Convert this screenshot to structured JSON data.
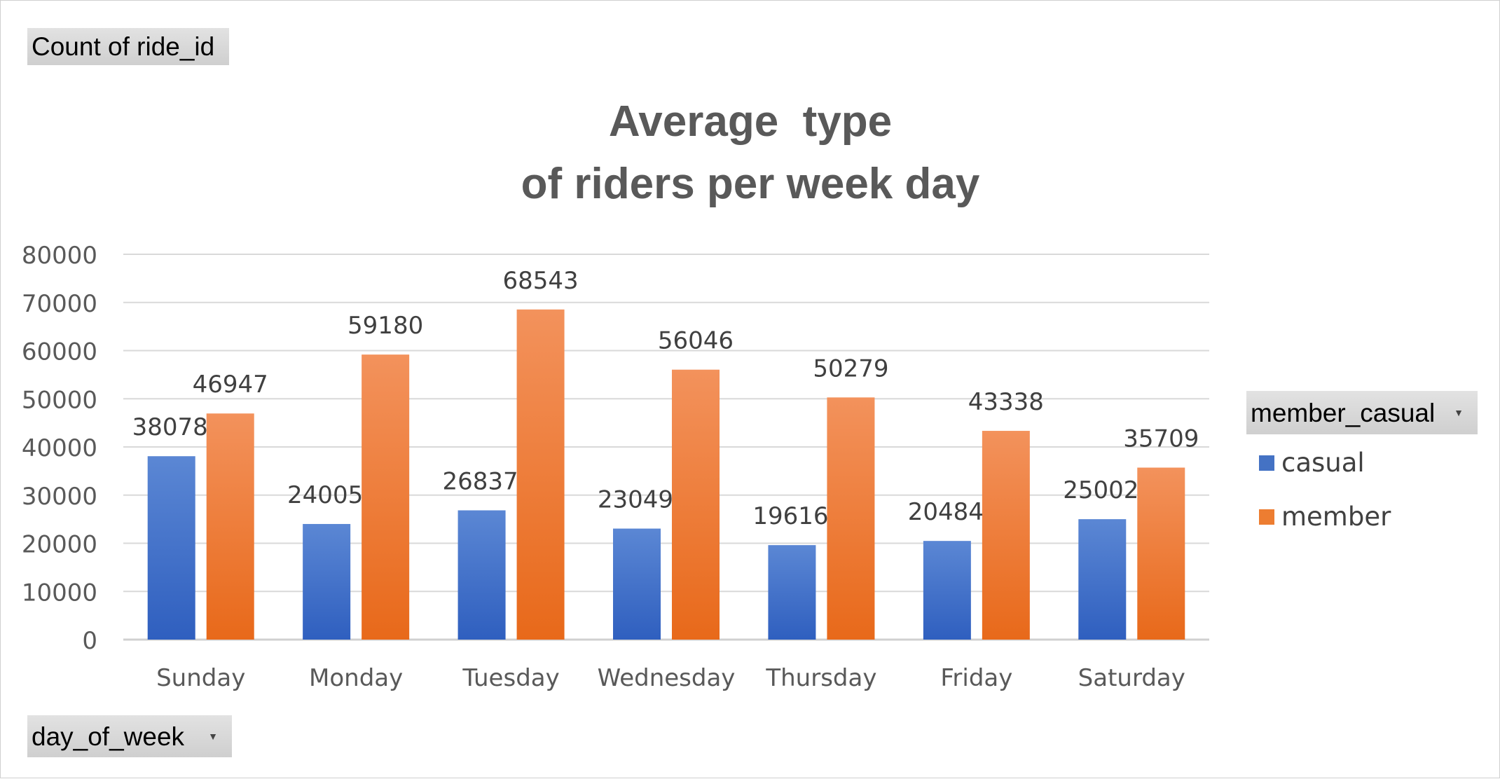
{
  "pivot": {
    "values_button": "Count of ride_id",
    "axis_button": "day_of_week",
    "legend_button": "member_casual"
  },
  "colors": {
    "casual": "#4472c4",
    "member": "#ed7d31"
  },
  "chart_data": {
    "type": "bar",
    "title_line1": "Average  type",
    "title_line2": "of riders per week day",
    "categories": [
      "Sunday",
      "Monday",
      "Tuesday",
      "Wednesday",
      "Thursday",
      "Friday",
      "Saturday"
    ],
    "series": [
      {
        "name": "casual",
        "values": [
          38078,
          24005,
          26837,
          23049,
          19616,
          20484,
          25002
        ]
      },
      {
        "name": "member",
        "values": [
          46947,
          59180,
          68543,
          56046,
          50279,
          43338,
          35709
        ]
      }
    ],
    "yticks": [
      "0",
      "10000",
      "20000",
      "30000",
      "40000",
      "50000",
      "60000",
      "70000",
      "80000"
    ],
    "ylim": [
      0,
      80000
    ],
    "grid": true,
    "legend_position": "right"
  }
}
